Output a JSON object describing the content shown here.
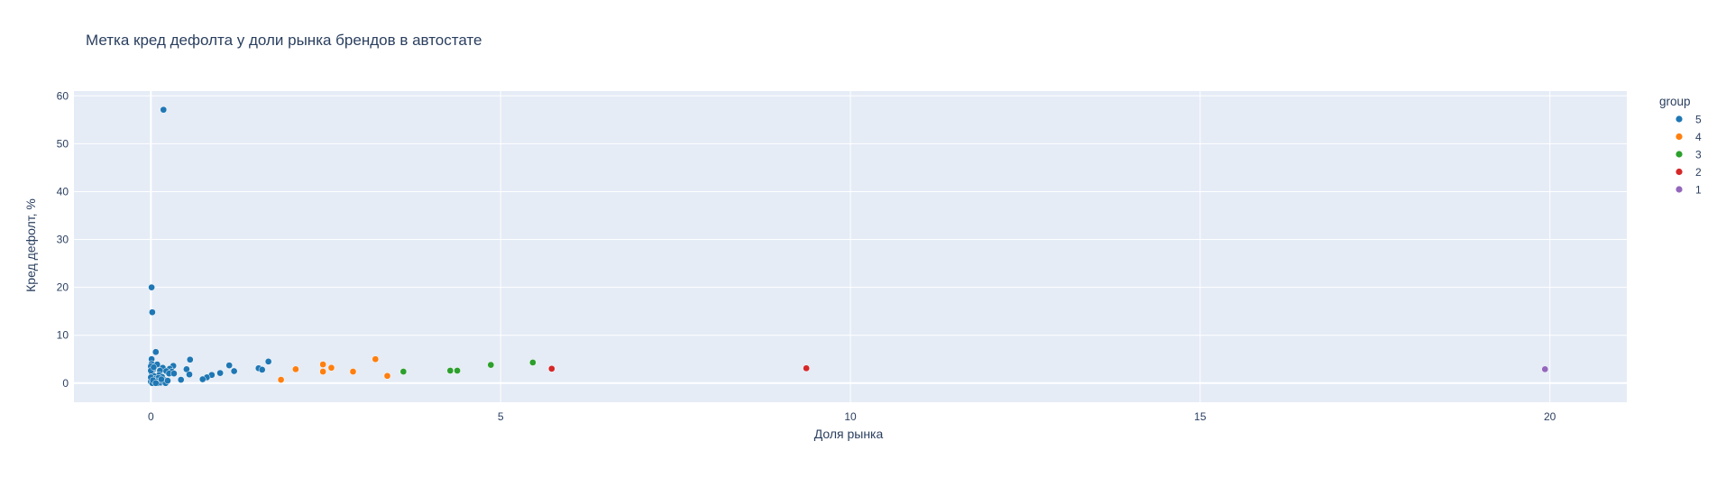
{
  "chart_data": {
    "type": "scatter",
    "title": "Метка кред дефолта у доли рынка брендов в автостате",
    "xlabel": "Доля рынка",
    "ylabel": "Кред дефолт, %",
    "xlim": [
      -1.1,
      21.1
    ],
    "ylim": [
      -4,
      61
    ],
    "x_ticks": [
      0,
      5,
      10,
      15,
      20
    ],
    "y_ticks": [
      0,
      10,
      20,
      30,
      40,
      50,
      60
    ],
    "grid": true,
    "legend_title": "group",
    "legend_position": "top-right",
    "plot_background": "#e5ecf6",
    "series": [
      {
        "name": "5",
        "color": "#1f77b4",
        "points": [
          [
            0.18,
            57.1
          ],
          [
            0.01,
            20.0
          ],
          [
            0.02,
            14.8
          ],
          [
            0.07,
            6.5
          ],
          [
            0.01,
            5.0
          ],
          [
            0.56,
            4.9
          ],
          [
            1.68,
            4.5
          ],
          [
            0.01,
            4.0
          ],
          [
            0.09,
            3.9
          ],
          [
            1.12,
            3.7
          ],
          [
            0.32,
            3.6
          ],
          [
            0.0,
            3.5
          ],
          [
            0.17,
            3.2
          ],
          [
            0.27,
            3.0
          ],
          [
            1.54,
            3.1
          ],
          [
            0.51,
            2.9
          ],
          [
            1.59,
            2.8
          ],
          [
            0.03,
            2.8
          ],
          [
            0.13,
            2.6
          ],
          [
            1.19,
            2.5
          ],
          [
            0.22,
            2.5
          ],
          [
            0.3,
            2.4
          ],
          [
            0.01,
            2.2
          ],
          [
            0.99,
            2.1
          ],
          [
            0.26,
            2.0
          ],
          [
            0.33,
            2.0
          ],
          [
            0.55,
            1.8
          ],
          [
            0.87,
            1.7
          ],
          [
            0.12,
            1.7
          ],
          [
            0.04,
            1.5
          ],
          [
            0.16,
            1.3
          ],
          [
            0.8,
            1.2
          ],
          [
            0.74,
            0.8
          ],
          [
            0.43,
            0.7
          ],
          [
            0.2,
            0.6
          ],
          [
            0.05,
            0.9
          ],
          [
            0.11,
            1.1
          ],
          [
            0.0,
            0.3
          ],
          [
            0.02,
            0.0
          ],
          [
            0.06,
            0.2
          ],
          [
            0.08,
            0.4
          ],
          [
            0.1,
            0.0
          ],
          [
            0.14,
            0.1
          ],
          [
            0.18,
            0.3
          ],
          [
            0.21,
            0.0
          ],
          [
            0.24,
            0.5
          ],
          [
            0.0,
            1.2
          ],
          [
            0.03,
            0.6
          ],
          [
            0.07,
            0.0
          ],
          [
            0.15,
            0.8
          ],
          [
            0.0,
            2.6
          ],
          [
            0.04,
            3.3
          ]
        ]
      },
      {
        "name": "4",
        "color": "#ff7f0e",
        "points": [
          [
            1.86,
            0.7
          ],
          [
            2.07,
            2.9
          ],
          [
            2.46,
            3.9
          ],
          [
            2.46,
            2.4
          ],
          [
            2.58,
            3.2
          ],
          [
            2.89,
            2.4
          ],
          [
            3.21,
            5.0
          ],
          [
            3.38,
            1.5
          ]
        ]
      },
      {
        "name": "3",
        "color": "#2ca02c",
        "points": [
          [
            3.61,
            2.4
          ],
          [
            4.28,
            2.6
          ],
          [
            4.38,
            2.6
          ],
          [
            4.86,
            3.8
          ],
          [
            5.46,
            4.3
          ]
        ]
      },
      {
        "name": "2",
        "color": "#d62728",
        "points": [
          [
            5.73,
            3.0
          ],
          [
            9.37,
            3.1
          ]
        ]
      },
      {
        "name": "1",
        "color": "#9467bd",
        "points": [
          [
            19.93,
            2.9
          ]
        ]
      }
    ]
  }
}
